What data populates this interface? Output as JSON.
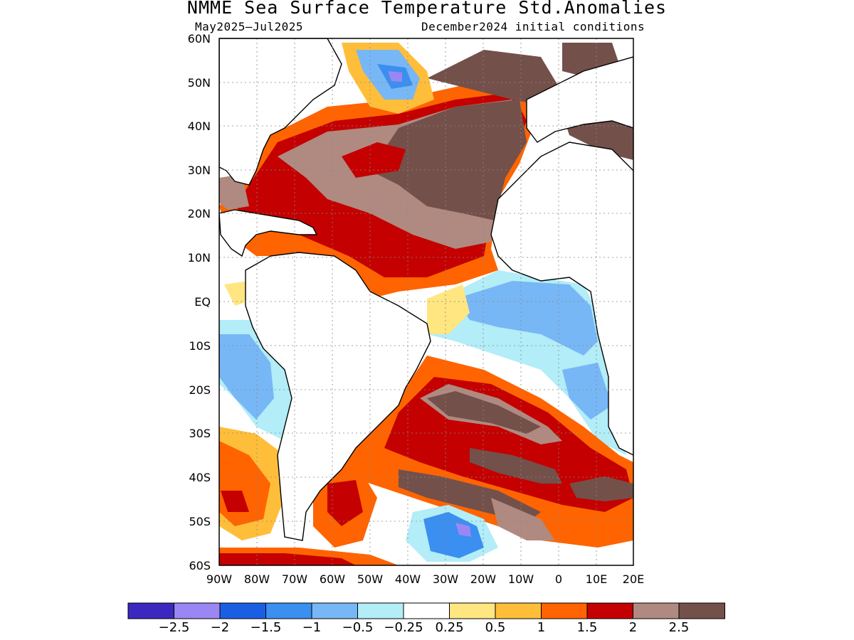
{
  "title": "NMME Sea Surface Temperature Std.Anomalies",
  "period": "May2025–Jul2025",
  "initial_conditions": "December2024 initial conditions",
  "map": {
    "lat_labels": [
      "60N",
      "50N",
      "40N",
      "30N",
      "20N",
      "10N",
      "EQ",
      "10S",
      "20S",
      "30S",
      "40S",
      "50S",
      "60S"
    ],
    "lon_labels": [
      "90W",
      "80W",
      "70W",
      "60W",
      "50W",
      "40W",
      "30W",
      "20W",
      "10W",
      "0",
      "10E",
      "20E"
    ],
    "lat_range": [
      -60,
      60
    ],
    "lon_range": [
      -90,
      20
    ],
    "land_color": "#ffffff",
    "grid": "dotted"
  },
  "colorbar": {
    "colors": [
      "#3b28bf",
      "#9b87f4",
      "#1a5fe3",
      "#3a8ff0",
      "#78b7f6",
      "#b2edf8",
      "#ffffff",
      "#ffe680",
      "#ffbe3a",
      "#ff6400",
      "#c40000",
      "#b08a80",
      "#74504a"
    ],
    "labels": [
      "−2.5",
      "−2",
      "−1.5",
      "−1",
      "−0.5",
      "−0.25",
      "0.25",
      "0.5",
      "1",
      "1.5",
      "2",
      "2.5"
    ]
  }
}
